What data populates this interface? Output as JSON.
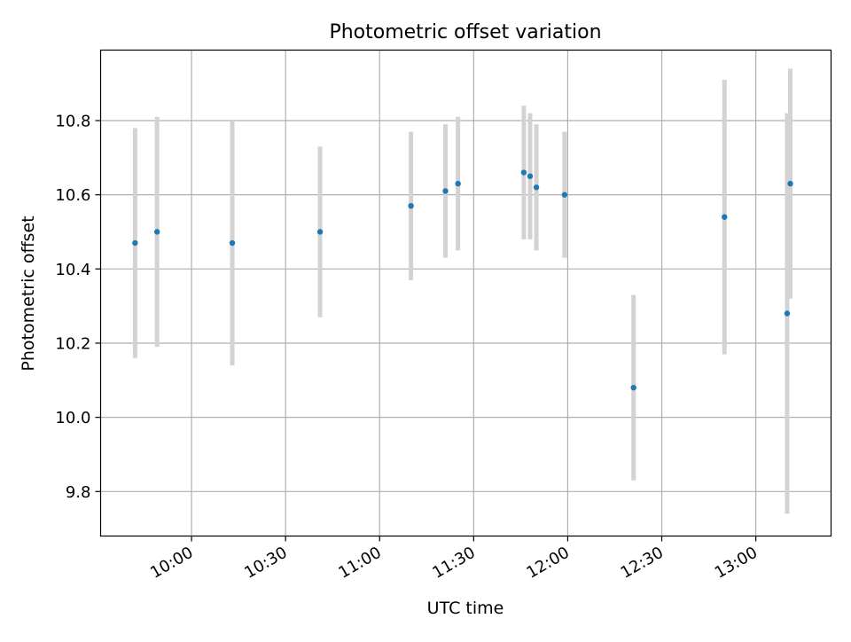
{
  "chart_data": {
    "type": "scatter",
    "title": "Photometric offset variation",
    "xlabel": "UTC time",
    "ylabel": "Photometric offset",
    "xlim": [
      "09:31",
      "13:24"
    ],
    "ylim": [
      9.68,
      10.99
    ],
    "x_ticks": [
      "10:00",
      "10:30",
      "11:00",
      "11:30",
      "12:00",
      "12:30",
      "13:00"
    ],
    "y_ticks": [
      "9.8",
      "10.0",
      "10.2",
      "10.4",
      "10.6",
      "10.8"
    ],
    "grid": true,
    "point_color": "#1f77b4",
    "errorbar_color": "#d3d3d3",
    "points": [
      {
        "x": "09:42",
        "y": 10.47,
        "err": 0.31
      },
      {
        "x": "09:49",
        "y": 10.5,
        "err": 0.31
      },
      {
        "x": "10:13",
        "y": 10.47,
        "err": 0.33
      },
      {
        "x": "10:41",
        "y": 10.5,
        "err": 0.23
      },
      {
        "x": "11:10",
        "y": 10.57,
        "err": 0.2
      },
      {
        "x": "11:21",
        "y": 10.61,
        "err": 0.18
      },
      {
        "x": "11:25",
        "y": 10.63,
        "err": 0.18
      },
      {
        "x": "11:46",
        "y": 10.66,
        "err": 0.18
      },
      {
        "x": "11:48",
        "y": 10.65,
        "err": 0.17
      },
      {
        "x": "11:50",
        "y": 10.62,
        "err": 0.17
      },
      {
        "x": "11:59",
        "y": 10.6,
        "err": 0.17
      },
      {
        "x": "12:21",
        "y": 10.08,
        "err": 0.25
      },
      {
        "x": "12:50",
        "y": 10.54,
        "err": 0.37
      },
      {
        "x": "13:10",
        "y": 10.28,
        "err": 0.54
      },
      {
        "x": "13:11",
        "y": 10.63,
        "err": 0.31
      }
    ]
  }
}
